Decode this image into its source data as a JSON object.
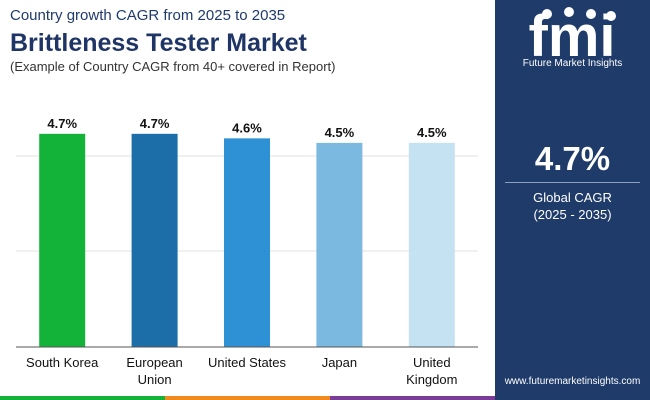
{
  "header": {
    "subtitle": "Country growth CAGR from 2025 to 2035",
    "title": "Brittleness Tester Market",
    "note": "(Example of Country CAGR from 40+ covered in Report)"
  },
  "brand": {
    "logo_text": "fmi",
    "name": "Future Market Insights",
    "website": "www.futuremarketinsights.com",
    "panel_color": "#1f3b6a"
  },
  "summary": {
    "value": "4.7%",
    "label": "Global CAGR",
    "period": "(2025 - 2035)"
  },
  "chart_data": {
    "type": "bar",
    "title": "Brittleness Tester Market",
    "categories": [
      [
        "South Korea"
      ],
      [
        "European",
        "Union"
      ],
      [
        "United States"
      ],
      [
        "Japan"
      ],
      [
        "United",
        "Kingdom"
      ]
    ],
    "values": [
      4.7,
      4.7,
      4.6,
      4.5,
      4.5
    ],
    "value_labels": [
      "4.7%",
      "4.7%",
      "4.6%",
      "4.5%",
      "4.5%"
    ],
    "colors": [
      "#13b33a",
      "#1c6ea8",
      "#2e91d6",
      "#7cb9e1",
      "#c5e2f3"
    ],
    "xlabel": "",
    "ylabel": "",
    "ylim": [
      0,
      5.6
    ],
    "grid": true,
    "legend": "none"
  },
  "footer_colors": [
    "#13b33a",
    "#f08a1c",
    "#7a3d97",
    "#1c6ea8"
  ]
}
